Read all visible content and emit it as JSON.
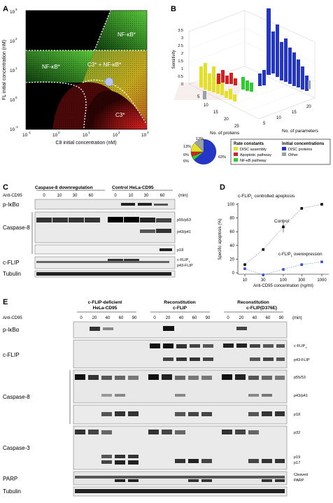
{
  "panels": {
    "a": "A",
    "b": "B",
    "c": "C",
    "d": "D",
    "e": "E"
  },
  "panelA": {
    "ylabel": "FL initial concentration (nM)",
    "xlabel": "C8 initial concentration (nM)",
    "xticks": [
      "10",
      "10",
      "10",
      "10",
      "10"
    ],
    "xexp": [
      "-1",
      "0",
      "1",
      "2",
      "3"
    ],
    "yticks": [
      "10",
      "10",
      "10",
      "10",
      "10"
    ],
    "yexp": [
      "3",
      "2",
      "1",
      "0",
      "-1"
    ],
    "regions": {
      "nfkb_top": "NF-κB*",
      "nfkb_left": "NF-κB*",
      "c3nfkb": "C3* + NF-κB*",
      "c3": "C3*"
    },
    "colors": {
      "black": "#000000",
      "green": "#2e8b2e",
      "yellow": "#b5a81e",
      "red": "#b41a1a",
      "marker": "#b8c4f0"
    }
  },
  "panelB": {
    "zlabel": "Sensitivity",
    "zticks": [
      "0",
      "0.5",
      "1",
      "1.5",
      "2",
      "2.5",
      "3",
      "3.5"
    ],
    "xlabel": "No. of proteins",
    "xticks": [
      "5",
      "10",
      "15",
      "20",
      "25"
    ],
    "ylabel": "No. of parameters",
    "yticks": [
      "5",
      "10",
      "15",
      "20"
    ],
    "pie": {
      "labels": [
        "12%",
        "13%",
        "6%",
        "6%",
        "63%"
      ],
      "values": [
        12,
        13,
        6,
        6,
        63
      ]
    },
    "legend": {
      "rate_title": "Rate constants",
      "init_title": "Initial concentrations",
      "items": [
        {
          "label": "DISC assembly",
          "color": "#e8e82a"
        },
        {
          "label": "Apoptotic pathway",
          "color": "#d42020"
        },
        {
          "label": "NF-κB pathway",
          "color": "#2ecc2e"
        },
        {
          "label": "DISC proteins",
          "color": "#2233cc"
        },
        {
          "label": "Other",
          "color": "#9aa0a8"
        }
      ]
    }
  },
  "panelC": {
    "treatment": "Anti-CD95",
    "group1": "Caspase-8 downregulation",
    "group2": "Control HeLa-CD95",
    "times": [
      "0",
      "10",
      "30",
      "60",
      "0",
      "10",
      "30",
      "60"
    ],
    "unit": "(min)",
    "rows": [
      "p-IκBα",
      "Caspase-8",
      "c-FLIP",
      "Tubulin"
    ],
    "bands": {
      "p55": "p55/p53",
      "p43": "p43/p41",
      "p18": "p18",
      "flipl": "c-FLIP",
      "flipl_sub": "L",
      "p43flip": "p43-FLIP"
    }
  },
  "panelD": {
    "title": "c-FLIP",
    "title_sub": "L",
    "title_rest": " controlled apoptosis",
    "ylabel": "Specific apoptosis (%)",
    "xlabel": "Anti-CD95 concentration (ng/ml)",
    "yticks": [
      "0",
      "20",
      "40",
      "60",
      "80",
      "100"
    ],
    "xticks": [
      "10",
      "30",
      "100",
      "300",
      "1000"
    ],
    "chart_data": {
      "type": "line",
      "x": [
        10,
        30,
        100,
        300,
        1000
      ],
      "xscale": "log",
      "ylim": [
        0,
        100
      ],
      "series": [
        {
          "name": "Control",
          "values": [
            12,
            34,
            67,
            94,
            100
          ],
          "color": "#000000"
        },
        {
          "name": "c-FLIP overexpression",
          "values": [
            6,
            -3,
            5,
            12,
            16
          ],
          "color": "#3a4ad8"
        }
      ]
    },
    "labels": {
      "control": "Control",
      "over": "c-FLIP",
      "over_sub": "L",
      "over_rest": " overexpression"
    }
  },
  "panelE": {
    "treatment": "Anti-CD95",
    "groups": [
      "c-FLIP-deficient",
      "HeLa-CD95",
      "Reconstitution",
      "c-FLIP",
      "Reconstitution",
      "c-FLIP",
      "(D376E)"
    ],
    "times": [
      "0",
      "20",
      "40",
      "60",
      "90",
      "0",
      "20",
      "40",
      "60",
      "90",
      "0",
      "20",
      "40",
      "60",
      "90"
    ],
    "unit": "(min)",
    "rows": [
      "p-IκBα",
      "c-FLIP",
      "Caspase-8",
      "Caspase-3",
      "PARP",
      "Tubulin"
    ],
    "bands": {
      "flipl": "c-FLIP",
      "flipl_sub": "L",
      "p43flip": "p43-FLIP",
      "p55": "p55/53",
      "p43": "p43/p41",
      "p18": "p18",
      "p32": "p32",
      "p19": "p19",
      "p17": "p17",
      "cleaved": "Cleaved",
      "parp": "PARP"
    }
  }
}
